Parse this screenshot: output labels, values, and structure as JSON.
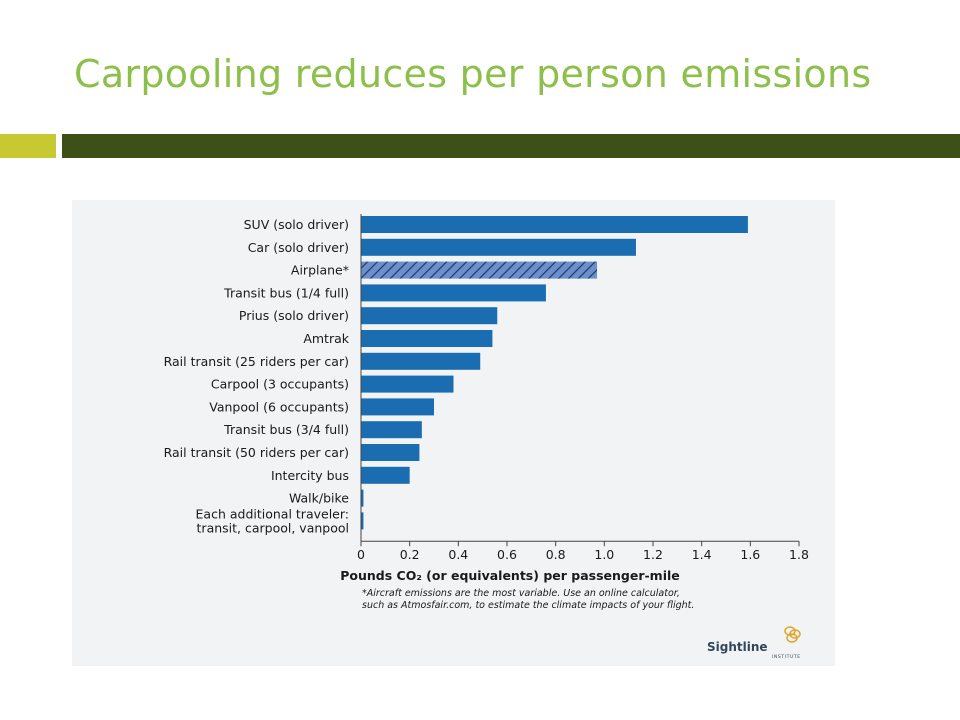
{
  "slide": {
    "title": "Carpooling reduces per person emissions"
  },
  "colors": {
    "title": "#8dbf4b",
    "accent_bar": "#c8c832",
    "main_bar": "#3d5018",
    "bar_fill": "#1b6db1",
    "hatched_fill": "#6d8fca",
    "panel_bg": "#f1f3f5"
  },
  "chart_data": {
    "type": "bar",
    "orientation": "horizontal",
    "categories": [
      [
        "SUV (solo driver)"
      ],
      [
        "Car (solo driver)"
      ],
      [
        "Airplane*"
      ],
      [
        "Transit bus (1/4 full)"
      ],
      [
        "Prius (solo driver)"
      ],
      [
        "Amtrak"
      ],
      [
        "Rail transit (25 riders per car)"
      ],
      [
        "Carpool (3 occupants)"
      ],
      [
        "Vanpool (6 occupants)"
      ],
      [
        "Transit bus (3/4 full)"
      ],
      [
        "Rail transit (50 riders per car)"
      ],
      [
        "Intercity bus"
      ],
      [
        "Walk/bike"
      ],
      [
        "Each additional traveler:",
        "transit, carpool, vanpool"
      ]
    ],
    "values": [
      1.59,
      1.13,
      0.97,
      0.76,
      0.56,
      0.54,
      0.49,
      0.38,
      0.3,
      0.25,
      0.24,
      0.2,
      0.01,
      0.01
    ],
    "hatched": [
      false,
      false,
      true,
      false,
      false,
      false,
      false,
      false,
      false,
      false,
      false,
      false,
      false,
      false
    ],
    "xlim": [
      0,
      1.8
    ],
    "xticks": [
      "0",
      "0.2",
      "0.4",
      "0.6",
      "0.8",
      "1.0",
      "1.2",
      "1.4",
      "1.6",
      "1.8"
    ],
    "xlabel": "Pounds CO₂ (or equivalents) per passenger-mile",
    "footnote": [
      "*Aircraft emissions are the most variable.  Use an online calculator,",
      "such as Atmosfair.com, to estimate the climate impacts of your flight."
    ],
    "source_logo": {
      "name": "Sightline",
      "subtitle": "INSTITUTE",
      "icon": "interlocking-rings-logo"
    }
  }
}
